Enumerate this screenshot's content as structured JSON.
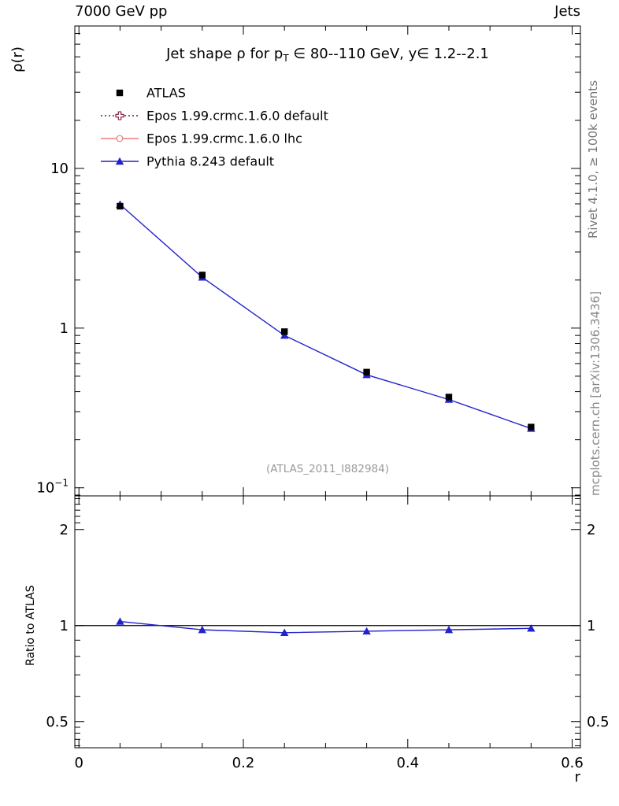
{
  "header": {
    "left_label": "7000 GeV pp",
    "right_label": "Jets"
  },
  "side_notes": {
    "rivet": "Rivet 4.1.0, ≥ 100k events",
    "mcplots": "mcplots.cern.ch [arXiv:1306.3436]"
  },
  "watermark": "(ATLAS_2011_I882984)",
  "axes": {
    "y_label": "ρ(r)",
    "x_label": "r",
    "ratio_label": "Ratio to ATLAS"
  },
  "title": {
    "pre": "Jet shape ρ for p",
    "sub": "T",
    "post": " ∈ 80--110 GeV, y∈ 1.2--2.1"
  },
  "chart_data": {
    "type": "line",
    "title": "Jet shape ρ for p_T ∈ 80--110 GeV, y ∈ 1.2--2.1",
    "xlabel": "r",
    "ylabel": "ρ(r)",
    "ratio_ylabel": "Ratio to ATLAS",
    "x": [
      0.05,
      0.15,
      0.25,
      0.35,
      0.45,
      0.55
    ],
    "xlim": [
      -0.005,
      0.61
    ],
    "xticks": [
      {
        "v": 0,
        "label": "0"
      },
      {
        "v": 0.2,
        "label": "0.2"
      },
      {
        "v": 0.4,
        "label": "0.4"
      },
      {
        "v": 0.6,
        "label": "0.6"
      }
    ],
    "x_minor_step": 0.05,
    "main_ylog": true,
    "main_ylim": [
      0.089,
      78
    ],
    "main_yticks": [
      {
        "v": 10,
        "label": "10"
      },
      {
        "v": 1,
        "label": "1"
      },
      {
        "v": 0.1,
        "label": "10",
        "exp": "−1"
      }
    ],
    "series": [
      {
        "name": "ATLAS",
        "legend": "ATLAS",
        "marker": "filled-square",
        "color": "#000000",
        "line": "none",
        "values": [
          5.8,
          2.15,
          0.95,
          0.53,
          0.37,
          0.24
        ]
      },
      {
        "name": "Epos 1.99.crmc.1.6.0 default",
        "legend": "Epos 1.99.crmc.1.6.0 default",
        "marker": "open-cross",
        "color": "#7a1232",
        "line": "dotted",
        "values": []
      },
      {
        "name": "Epos 1.99.crmc.1.6.0 lhc",
        "legend": "Epos 1.99.crmc.1.6.0 lhc",
        "marker": "open-circle",
        "color": "#ee7d7d",
        "line": "solid",
        "values": []
      },
      {
        "name": "Pythia 8.243 default",
        "legend": "Pythia 8.243 default",
        "marker": "filled-triangle",
        "color": "#2222cc",
        "line": "solid",
        "values": [
          5.95,
          2.08,
          0.9,
          0.51,
          0.357,
          0.235
        ]
      }
    ],
    "ratio": {
      "ylog": true,
      "ylim": [
        0.414,
        2.55
      ],
      "baseline": 1,
      "yticks": [
        {
          "v": 2,
          "label": "2"
        },
        {
          "v": 1,
          "label": "1"
        },
        {
          "v": 0.5,
          "label": "0.5"
        }
      ],
      "series": [
        {
          "name": "Pythia 8.243 default",
          "marker": "filled-triangle",
          "color": "#2222cc",
          "line": "solid",
          "values": [
            1.03,
            0.97,
            0.95,
            0.96,
            0.97,
            0.98
          ]
        }
      ]
    }
  }
}
